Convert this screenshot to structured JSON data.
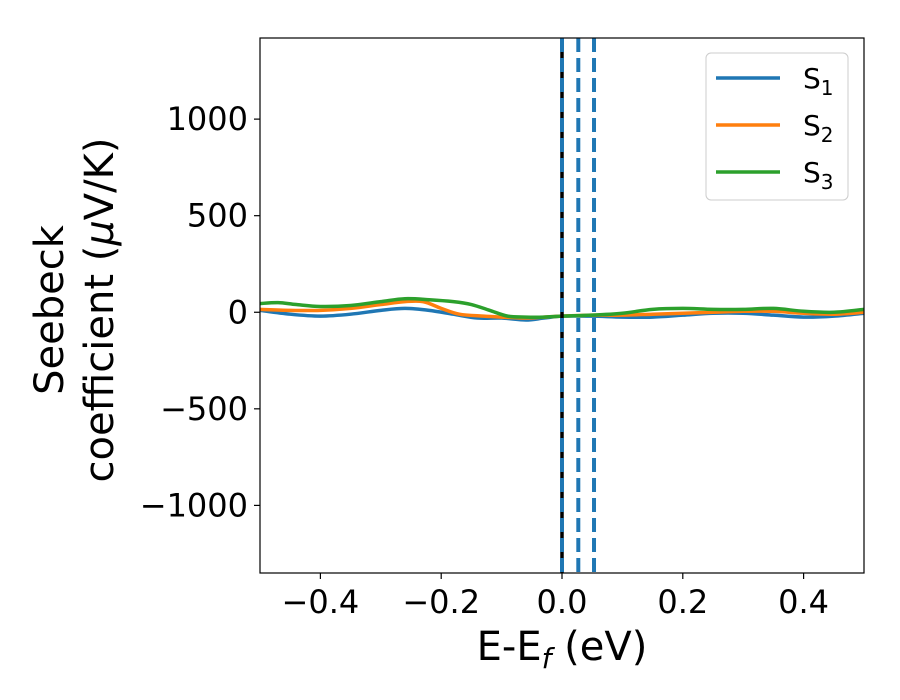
{
  "chart_data": {
    "type": "line",
    "xlabel": {
      "main": "E-E",
      "sub": "f",
      "tail": " (eV)"
    },
    "ylabel": {
      "line1": "Seebeck",
      "line2_a": "coefficient  (",
      "line2_mu": "μ",
      "line2_b": "V/K)"
    },
    "xlim": [
      -0.5,
      0.5
    ],
    "ylim": [
      -1350,
      1420
    ],
    "xticks": [
      -0.4,
      -0.2,
      0.0,
      0.2,
      0.4
    ],
    "xtick_labels": [
      "−0.4",
      "−0.2",
      "0.0",
      "0.2",
      "0.4"
    ],
    "yticks": [
      -1000,
      -500,
      0,
      500,
      1000
    ],
    "ytick_labels": [
      "−1000",
      "−500",
      "0",
      "500",
      "1000"
    ],
    "grid": false,
    "legend_position": "top-right",
    "vlines": [
      {
        "x": 0.0,
        "color": "#000000",
        "style": "solid"
      },
      {
        "x": 0.0,
        "color": "#1f77b4",
        "style": "dashed"
      },
      {
        "x": 0.027,
        "color": "#1f77b4",
        "style": "dashed"
      },
      {
        "x": 0.053,
        "color": "#1f77b4",
        "style": "dashed"
      }
    ],
    "series": [
      {
        "name": "S",
        "sub": "1",
        "color": "#1f77b4",
        "x": [
          -0.5,
          -0.45,
          -0.4,
          -0.35,
          -0.3,
          -0.26,
          -0.22,
          -0.18,
          -0.14,
          -0.1,
          -0.06,
          -0.03,
          0.0,
          0.05,
          0.1,
          0.15,
          0.2,
          0.25,
          0.3,
          0.35,
          0.4,
          0.45,
          0.5
        ],
        "y": [
          10,
          -10,
          -20,
          -10,
          10,
          20,
          10,
          -10,
          -30,
          -30,
          -40,
          -30,
          -20,
          -20,
          -25,
          -25,
          -15,
          -5,
          -5,
          -15,
          -25,
          -20,
          -5
        ]
      },
      {
        "name": "S",
        "sub": "2",
        "color": "#ff7f0e",
        "x": [
          -0.5,
          -0.45,
          -0.4,
          -0.35,
          -0.3,
          -0.26,
          -0.23,
          -0.2,
          -0.17,
          -0.13,
          -0.1,
          -0.06,
          -0.03,
          0.0,
          0.05,
          0.1,
          0.15,
          0.2,
          0.25,
          0.3,
          0.35,
          0.4,
          0.45,
          0.5
        ],
        "y": [
          15,
          10,
          10,
          20,
          40,
          55,
          55,
          20,
          -10,
          -20,
          -25,
          -30,
          -25,
          -20,
          -15,
          -15,
          -10,
          -5,
          0,
          5,
          5,
          -5,
          -10,
          0
        ]
      },
      {
        "name": "S",
        "sub": "3",
        "color": "#2ca02c",
        "x": [
          -0.5,
          -0.47,
          -0.44,
          -0.4,
          -0.35,
          -0.3,
          -0.26,
          -0.22,
          -0.18,
          -0.15,
          -0.12,
          -0.09,
          -0.06,
          -0.03,
          0.0,
          0.05,
          0.1,
          0.15,
          0.2,
          0.25,
          0.3,
          0.35,
          0.4,
          0.45,
          0.5
        ],
        "y": [
          45,
          50,
          40,
          30,
          35,
          55,
          70,
          65,
          55,
          40,
          10,
          -20,
          -25,
          -25,
          -20,
          -15,
          -5,
          15,
          20,
          15,
          15,
          20,
          5,
          0,
          15
        ]
      }
    ]
  }
}
